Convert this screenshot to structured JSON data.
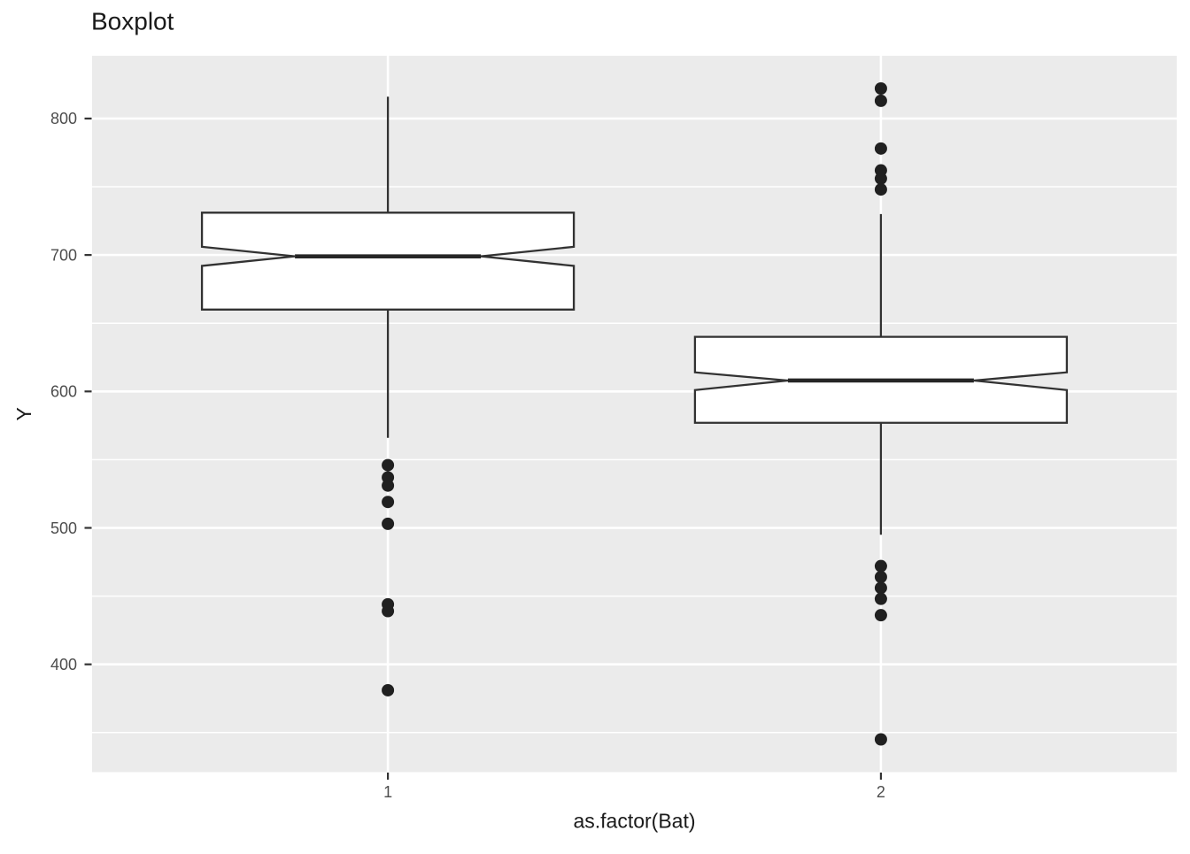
{
  "title": "Boxplot",
  "axes": {
    "x_title": "as.factor(Bat)",
    "y_title": "Y",
    "x_tick_labels": [
      "1",
      "2"
    ],
    "y_tick_labels": [
      "400",
      "500",
      "600",
      "700",
      "800"
    ]
  },
  "chart_data": {
    "type": "boxplot",
    "title": "Boxplot",
    "xlabel": "as.factor(Bat)",
    "ylabel": "Y",
    "categories": [
      "1",
      "2"
    ],
    "ylim": [
      321,
      846
    ],
    "yticks": [
      400,
      500,
      600,
      700,
      800
    ],
    "yticks_minor": [
      350,
      450,
      550,
      650,
      750
    ],
    "grid": "white major+minor horizontal lines, white major vertical lines on grey panel",
    "legend_position": "none",
    "notched": true,
    "box_width_fraction": 0.75,
    "notch_width_fraction": 0.5,
    "series": [
      {
        "category": "1",
        "lower_whisker": 566,
        "q1": 660,
        "notch_lower": 692,
        "median": 699,
        "notch_upper": 706,
        "q3": 731,
        "upper_whisker": 816,
        "outliers": [
          546,
          537,
          531,
          519,
          503,
          444,
          439,
          381
        ]
      },
      {
        "category": "2",
        "lower_whisker": 495,
        "q1": 577,
        "notch_lower": 601,
        "median": 608,
        "notch_upper": 614,
        "q3": 640,
        "upper_whisker": 730,
        "outliers": [
          822,
          813,
          778,
          762,
          756,
          748,
          472,
          464,
          456,
          448,
          436,
          345
        ]
      }
    ],
    "style": {
      "panel_bg": "#EBEBEB",
      "grid_color": "#FFFFFF",
      "box_fill": "#FFFFFF",
      "box_stroke": "#323232",
      "median_stroke": "#262626",
      "whisker_stroke": "#323232",
      "outlier_fill": "#202020",
      "tick_mark_color": "#333333",
      "tick_label_color": "#4D4D4D",
      "title_color": "#1A1A1A"
    }
  }
}
